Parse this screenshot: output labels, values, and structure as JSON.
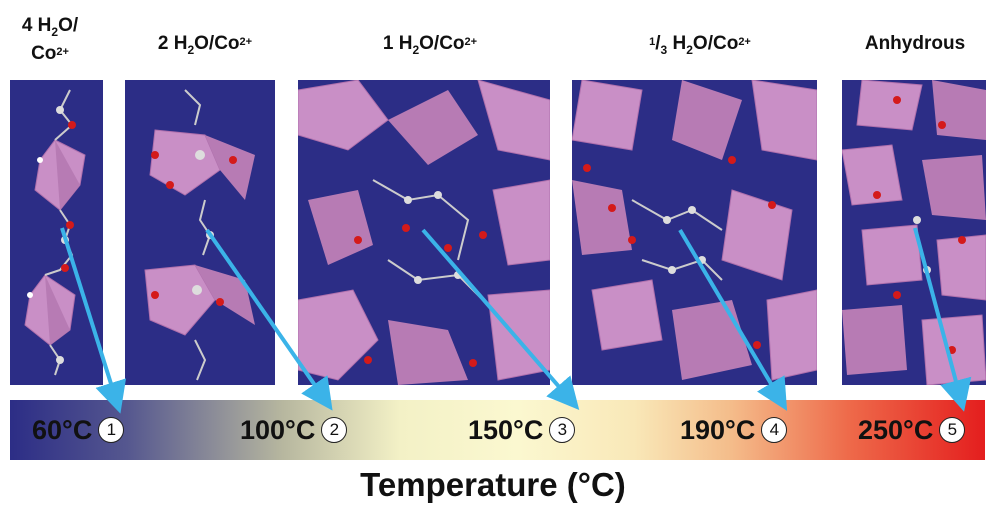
{
  "labels": [
    {
      "pre": "4 H",
      "sub": "2",
      "mid": "O/",
      "line2": "Co",
      "sup": "2+"
    },
    {
      "pre": "2 H",
      "sub": "2",
      "mid": "O/Co",
      "sup": "2+"
    },
    {
      "pre": "1 H",
      "sub": "2",
      "mid": "O/Co",
      "sup": "2+"
    },
    {
      "frac_sup": "1",
      "frac_sub": "3",
      "pre": " H",
      "sub": "2",
      "mid": "O/Co",
      "sup": "2+"
    },
    {
      "text": "Anhydrous"
    }
  ],
  "temperatures": [
    {
      "value": "60°C",
      "step": "1"
    },
    {
      "value": "100°C",
      "step": "2"
    },
    {
      "value": "150°C",
      "step": "3"
    },
    {
      "value": "190°C",
      "step": "4"
    },
    {
      "value": "250°C",
      "step": "5"
    }
  ],
  "axis_title": "Temperature (°C)",
  "colors": {
    "background": "#2c2d86",
    "polyhedra": "#c98fc6",
    "arrow": "#3bb3e8",
    "oxygen": "#d41a1a",
    "atom": "#d9d9d9"
  }
}
